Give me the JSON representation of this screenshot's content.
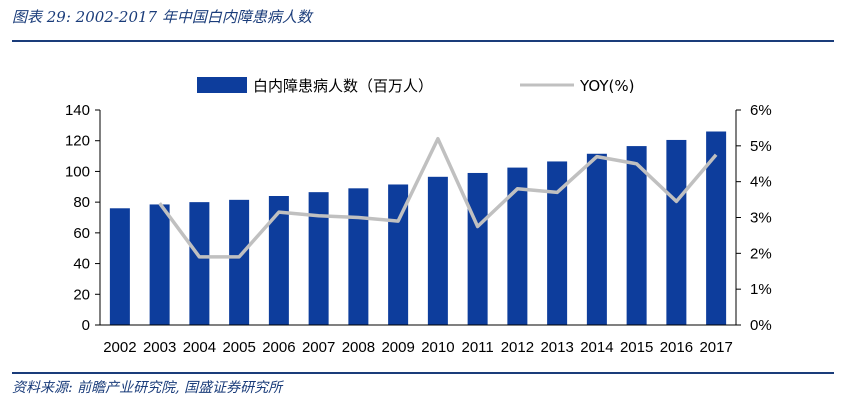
{
  "figure": {
    "title": "图表 29:  2002-2017 年中国白内障患病人数",
    "source": "资料来源:  前瞻产业研究院, 国盛证券研究所"
  },
  "colors": {
    "bar": "#0d3d9c",
    "line": "#c0c0c0",
    "rule": "#1a3c7a",
    "axis": "#000000"
  },
  "chart_data": {
    "type": "bar",
    "categories": [
      "2002",
      "2003",
      "2004",
      "2005",
      "2006",
      "2007",
      "2008",
      "2009",
      "2010",
      "2011",
      "2012",
      "2013",
      "2014",
      "2015",
      "2016",
      "2017"
    ],
    "series": [
      {
        "name": "白内障患病人数（百万人）",
        "type": "bar",
        "axis": "left",
        "values": [
          76,
          78.5,
          80,
          81.5,
          84,
          86.5,
          89,
          91.5,
          96.5,
          99,
          102.5,
          106.5,
          111.5,
          116.5,
          120.5,
          126
        ]
      },
      {
        "name": "YOY(%)",
        "type": "line",
        "axis": "right",
        "values": [
          null,
          3.4,
          1.9,
          1.9,
          3.15,
          3.05,
          3.0,
          2.9,
          5.2,
          2.75,
          3.8,
          3.7,
          4.7,
          4.5,
          3.45,
          4.75
        ]
      }
    ],
    "left_axis": {
      "ylim": [
        0,
        140
      ],
      "ticks": [
        0,
        20,
        40,
        60,
        80,
        100,
        120,
        140
      ],
      "tick_labels": [
        "0",
        "20",
        "40",
        "60",
        "80",
        "100",
        "120",
        "140"
      ]
    },
    "right_axis": {
      "ylim": [
        0,
        6
      ],
      "ticks": [
        0,
        1,
        2,
        3,
        4,
        5,
        6
      ],
      "tick_labels": [
        "0%",
        "1%",
        "2%",
        "3%",
        "4%",
        "5%",
        "6%"
      ]
    },
    "legend": {
      "position": "top-center",
      "items": [
        "白内障患病人数（百万人）",
        "YOY(%)"
      ]
    },
    "grid": false
  }
}
